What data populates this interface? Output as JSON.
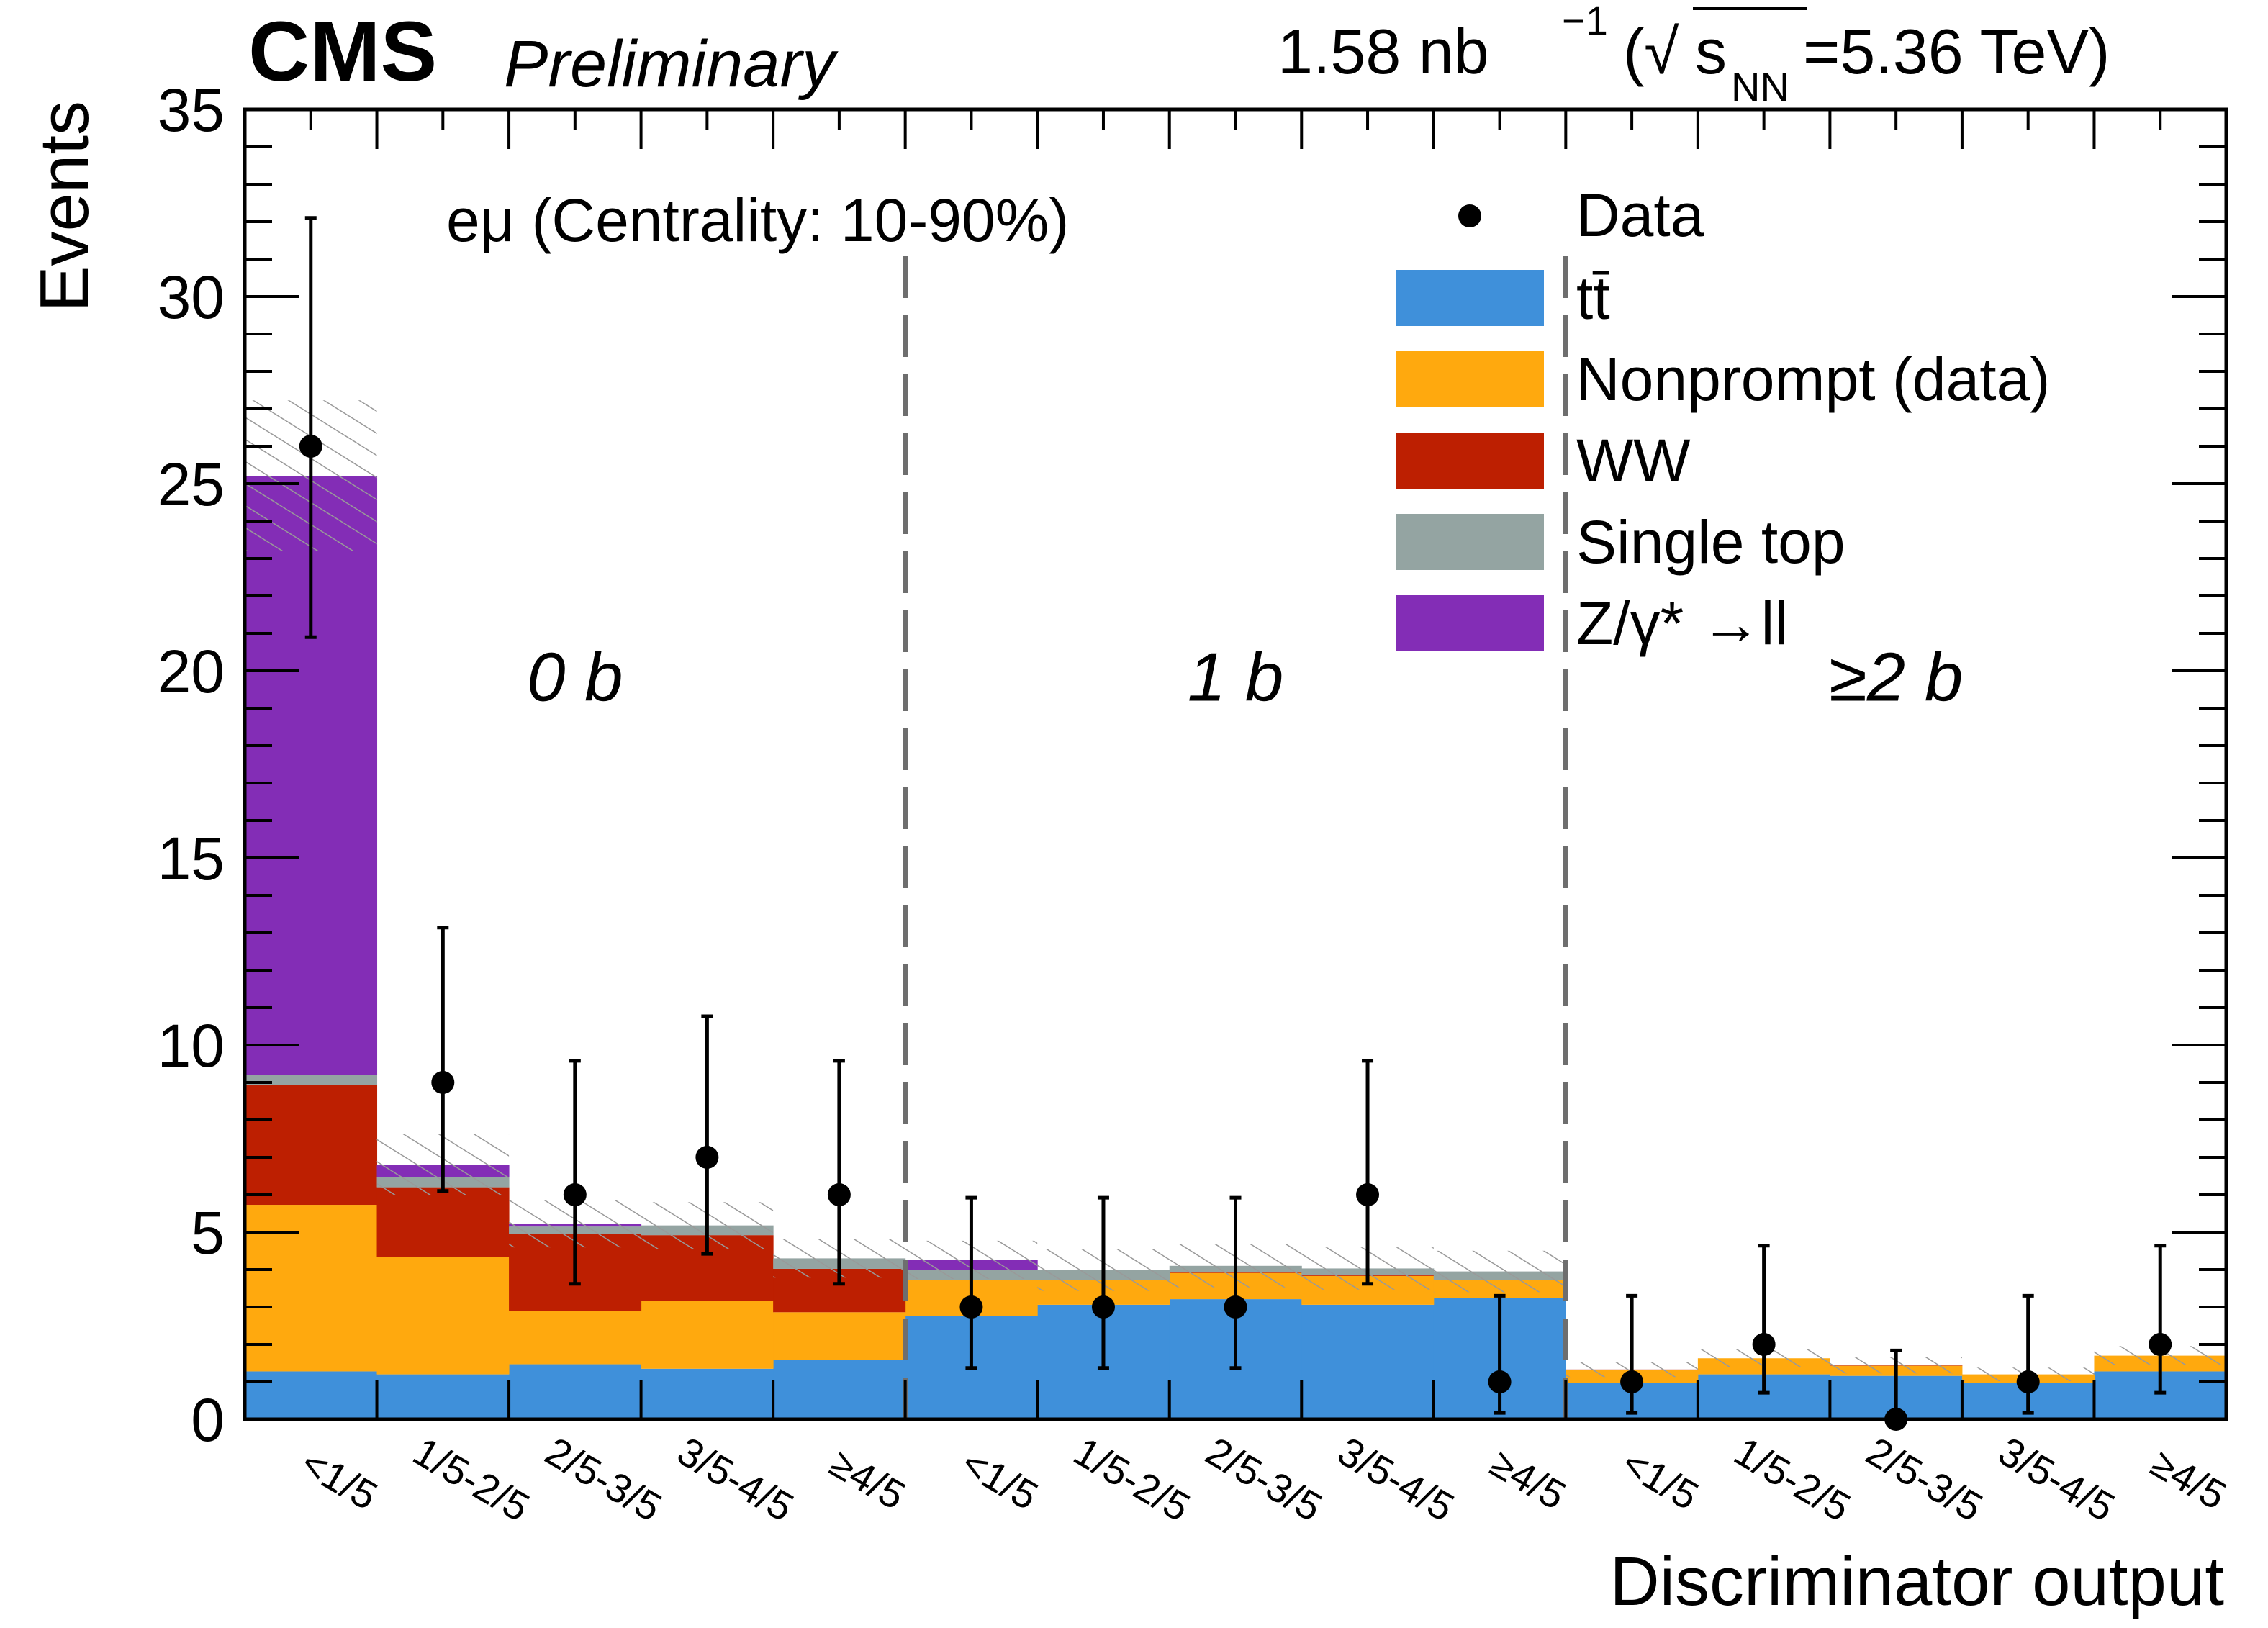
{
  "chart_data": {
    "type": "bar",
    "stacked": true,
    "title": "",
    "experiment_label": "CMS",
    "status_label": "Preliminary",
    "lumi_label": {
      "prefix": "1.58 nb",
      "exponent": "−1",
      "energy_open": "(√",
      "energy_s": "s",
      "energy_sub": "NN",
      "energy_value": "=5.36 TeV)"
    },
    "channel_label": "eμ (Centrality: 10-90%)",
    "xlabel": "Discriminator output",
    "ylabel": "Events",
    "ylim": [
      0,
      35
    ],
    "yticks": [
      0,
      5,
      10,
      15,
      20,
      25,
      30,
      35
    ],
    "ytick_labels": [
      "0",
      "5",
      "10",
      "15",
      "20",
      "25",
      "30",
      "35"
    ],
    "legend_position": "top-right",
    "regions": [
      {
        "label": "0 b",
        "bins": [
          0,
          4
        ]
      },
      {
        "label": "1 b",
        "bins": [
          5,
          9
        ]
      },
      {
        "label": "≥2 b",
        "bins": [
          10,
          14
        ]
      }
    ],
    "categories": [
      "<1/5",
      "1/5-2/5",
      "2/5-3/5",
      "3/5-4/5",
      "≥4/5",
      "<1/5",
      "1/5-2/5",
      "2/5-3/5",
      "3/5-4/5",
      "≥4/5",
      "<1/5",
      "1/5-2/5",
      "2/5-3/5",
      "3/5-4/5",
      "≥4/5"
    ],
    "series": [
      {
        "name": "tt̄",
        "label": "tt̄",
        "color": "#3f90da",
        "values": [
          1.28,
          1.2,
          1.47,
          1.35,
          1.58,
          2.75,
          3.06,
          3.21,
          3.06,
          3.25,
          0.97,
          1.2,
          1.16,
          0.97,
          1.28
        ]
      },
      {
        "name": "Nonprompt (data)",
        "label": "Nonprompt (data)",
        "color": "#ffa90e",
        "values": [
          4.45,
          3.14,
          1.43,
          1.82,
          1.28,
          0.97,
          0.66,
          0.7,
          0.77,
          0.47,
          0.35,
          0.43,
          0.27,
          0.23,
          0.42
        ]
      },
      {
        "name": "WW",
        "label": "WW",
        "color": "#bd1f01",
        "values": [
          3.21,
          1.86,
          2.06,
          1.75,
          1.16,
          0.0,
          0.0,
          0.03,
          0.02,
          0.0,
          0.01,
          0.0,
          0.01,
          0.0,
          0.0
        ]
      },
      {
        "name": "Single top",
        "label": "Single top",
        "color": "#94a4a2",
        "values": [
          0.27,
          0.27,
          0.19,
          0.26,
          0.28,
          0.27,
          0.27,
          0.16,
          0.18,
          0.23,
          0.0,
          0.0,
          0.0,
          0.0,
          0.0
        ]
      },
      {
        "name": "Z/γ*→ll",
        "label": "Z/γ* →ll",
        "color": "#832db6",
        "values": [
          16.0,
          0.33,
          0.07,
          0.0,
          0.0,
          0.27,
          0.0,
          0.0,
          0.0,
          0.0,
          0.0,
          0.0,
          0.0,
          0.0,
          0.0
        ]
      }
    ],
    "uncertainty_band": {
      "label": "Total uncertainty (hatched)",
      "relative_up": [
        0.08,
        0.12,
        0.12,
        0.12,
        0.12,
        0.12,
        0.14,
        0.14,
        0.14,
        0.14,
        0.15,
        0.15,
        0.15,
        0.15,
        0.15
      ]
    },
    "data": {
      "label": "Data",
      "values": [
        26,
        9,
        6,
        7,
        6,
        3,
        3,
        3,
        6,
        1,
        1,
        2,
        0,
        1,
        2
      ],
      "err_low": [
        20.9,
        6.1,
        3.62,
        4.42,
        3.62,
        1.37,
        1.37,
        1.37,
        3.62,
        0.17,
        0.17,
        0.71,
        0.0,
        0.17,
        0.71
      ],
      "err_high": [
        32.1,
        13.14,
        9.58,
        10.77,
        9.58,
        5.92,
        5.92,
        5.92,
        9.58,
        3.3,
        3.3,
        4.64,
        1.84,
        3.3,
        4.64
      ]
    }
  }
}
